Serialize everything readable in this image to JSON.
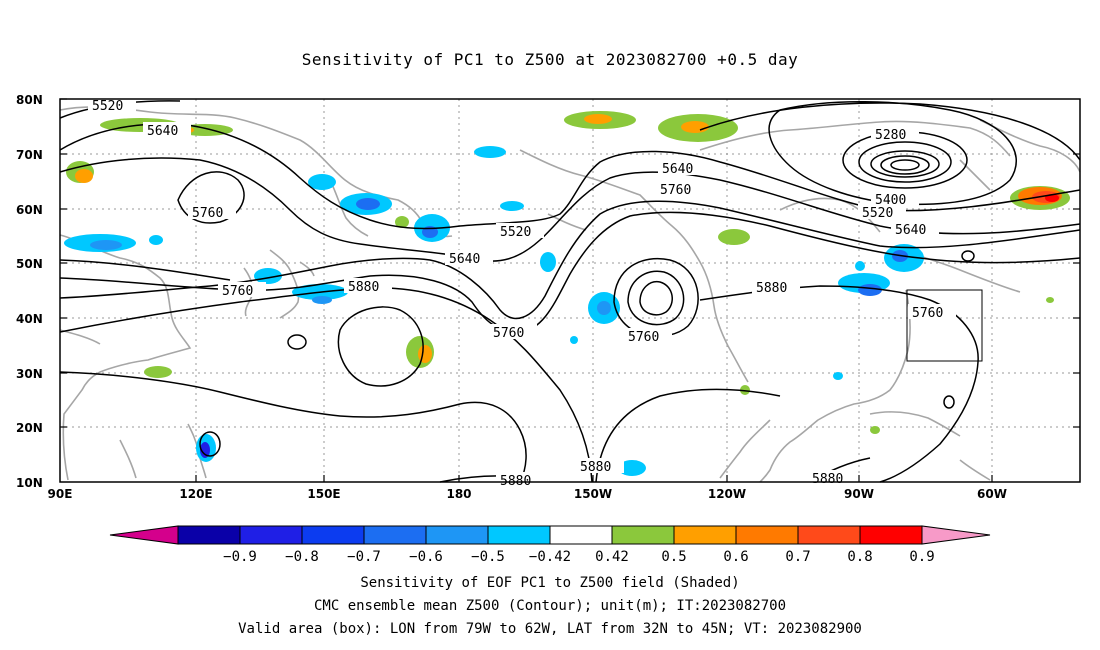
{
  "title": "Sensitivity of PC1 to Z500 at 2023082700 +0.5 day",
  "map": {
    "lat_labels": [
      "80N",
      "70N",
      "60N",
      "50N",
      "40N",
      "30N",
      "20N",
      "10N"
    ],
    "lon_labels": [
      "90E",
      "120E",
      "150E",
      "180",
      "150W",
      "120W",
      "90W",
      "60W"
    ],
    "contour_labels": [
      "5520",
      "5640",
      "5760",
      "5760",
      "5880",
      "5640",
      "5520",
      "5760",
      "5760",
      "5640",
      "5760",
      "5880",
      "5280",
      "5400",
      "5520",
      "5640",
      "5760",
      "5880",
      "5880",
      "5880"
    ],
    "valid_box": {
      "lon_range": [
        "79W",
        "62W"
      ],
      "lat_range": [
        "32N",
        "45N"
      ]
    }
  },
  "colorbar": {
    "labels": [
      "-0.9",
      "-0.8",
      "-0.7",
      "-0.6",
      "-0.5",
      "-0.42",
      "0.42",
      "0.5",
      "0.6",
      "0.7",
      "0.8",
      "0.9"
    ],
    "colors": [
      "#0a00a8",
      "#1f1fe6",
      "#0c3cf0",
      "#1c6ef2",
      "#1e96f5",
      "#00c8ff",
      "#ffffff",
      "#8bc83c",
      "#ff9f00",
      "#ff7a00",
      "#ff4a1a",
      "#ff0000"
    ],
    "end_low_color": "#d4008c",
    "end_high_color": "#f79ac8"
  },
  "captions": {
    "line1": "Sensitivity of EOF PC1 to Z500 field (Shaded)",
    "line2": "CMC ensemble mean Z500 (Contour); unit(m); IT:2023082700",
    "line3": "Valid area (box): LON from 79W to 62W, LAT from 32N to 45N; VT: 2023082900"
  }
}
